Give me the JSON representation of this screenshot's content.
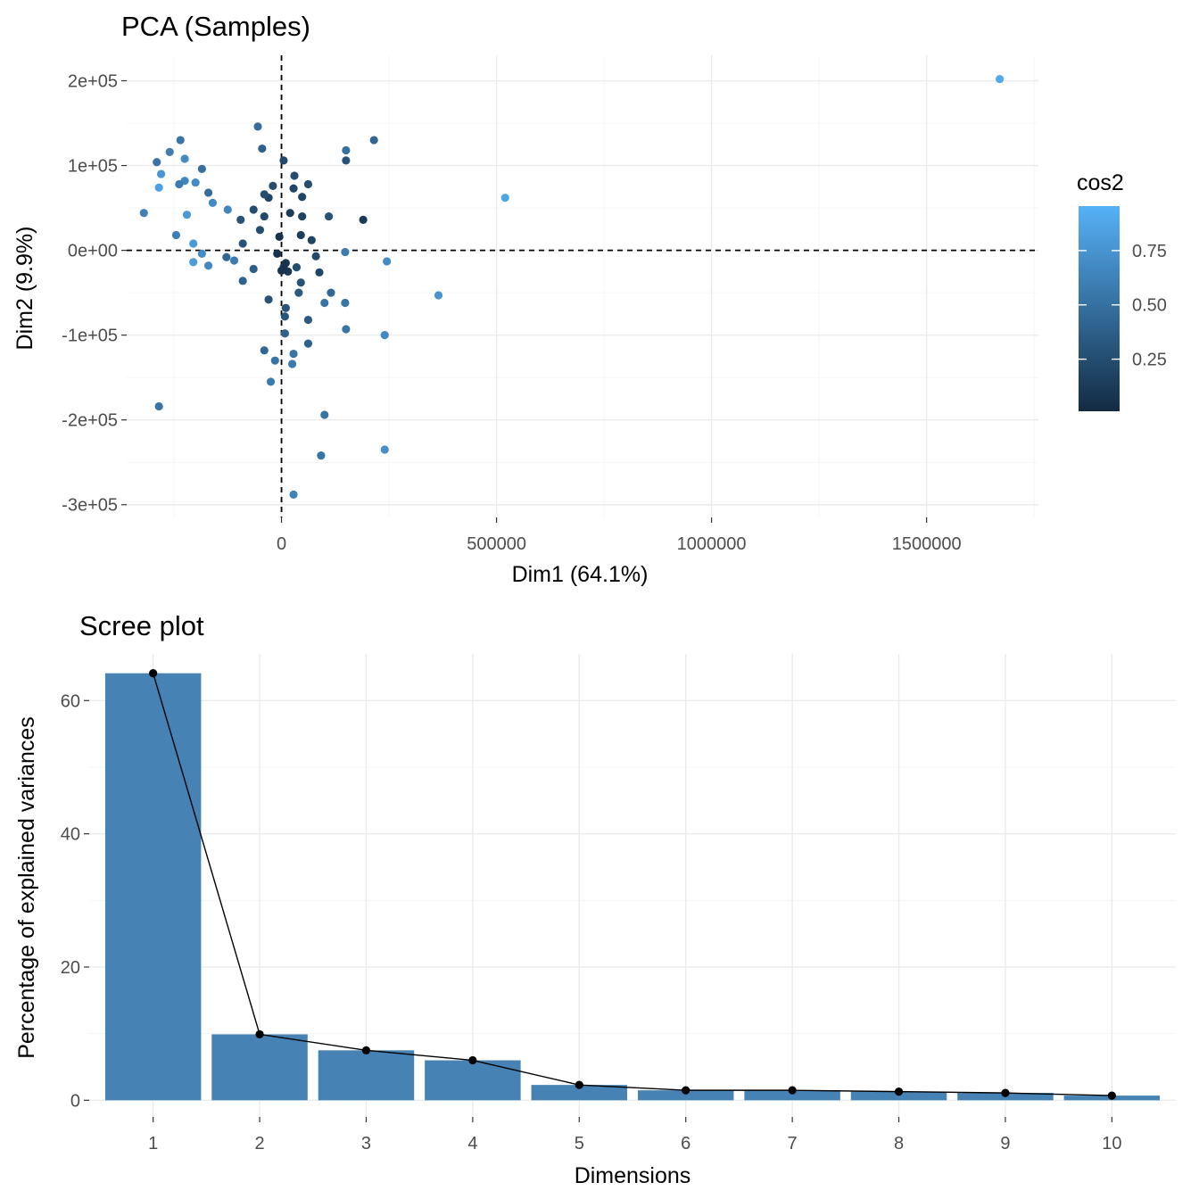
{
  "chart_data": [
    {
      "type": "scatter",
      "title": "PCA (Samples)",
      "xlabel": "Dim1 (64.1%)",
      "ylabel": "Dim2 (9.9%)",
      "xlim": [
        -360000,
        1760000
      ],
      "ylim": [
        -315000,
        230000
      ],
      "x_ticks": [
        0,
        500000,
        1000000,
        1500000
      ],
      "x_tick_labels": [
        "0",
        "500000",
        "1000000",
        "1500000"
      ],
      "y_ticks": [
        200000,
        100000,
        0,
        -100000,
        -200000,
        -300000
      ],
      "y_tick_labels": [
        "2e+05",
        "1e+05",
        "0e+00",
        "-1e+05",
        "-2e+05",
        "-3e+05"
      ],
      "reference_lines": {
        "x": 0,
        "y": 0,
        "style": "dashed"
      },
      "grid": true,
      "color_scale": {
        "name": "cos2",
        "low_color": "#132b43",
        "high_color": "#56b1f7",
        "range": [
          0,
          1
        ],
        "breaks": [
          0.75,
          0.5,
          0.25
        ],
        "break_labels": [
          "0.75",
          "0.50",
          "0.25"
        ],
        "legend_position": "right"
      },
      "points": [
        {
          "x": 1670000,
          "y": 202000,
          "cos2": 0.94
        },
        {
          "x": 520000,
          "y": 62000,
          "cos2": 0.9
        },
        {
          "x": 365000,
          "y": -53000,
          "cos2": 0.78
        },
        {
          "x": 245000,
          "y": -13000,
          "cos2": 0.72
        },
        {
          "x": 240000,
          "y": -100000,
          "cos2": 0.7
        },
        {
          "x": 240000,
          "y": -235000,
          "cos2": 0.74
        },
        {
          "x": 215000,
          "y": 130000,
          "cos2": 0.45
        },
        {
          "x": 190000,
          "y": 36000,
          "cos2": 0.12
        },
        {
          "x": 150000,
          "y": 118000,
          "cos2": 0.52
        },
        {
          "x": 150000,
          "y": 106000,
          "cos2": 0.3
        },
        {
          "x": 148000,
          "y": -2000,
          "cos2": 0.6
        },
        {
          "x": 148000,
          "y": -62000,
          "cos2": 0.55
        },
        {
          "x": 150000,
          "y": -93000,
          "cos2": 0.55
        },
        {
          "x": 110000,
          "y": 40000,
          "cos2": 0.3
        },
        {
          "x": 115000,
          "y": -50000,
          "cos2": 0.45
        },
        {
          "x": 100000,
          "y": -62000,
          "cos2": 0.55
        },
        {
          "x": 100000,
          "y": -194000,
          "cos2": 0.55
        },
        {
          "x": 92000,
          "y": -242000,
          "cos2": 0.55
        },
        {
          "x": 88000,
          "y": -26000,
          "cos2": 0.2
        },
        {
          "x": 80000,
          "y": -7000,
          "cos2": 0.22
        },
        {
          "x": 70000,
          "y": 12000,
          "cos2": 0.18
        },
        {
          "x": 62000,
          "y": 78000,
          "cos2": 0.25
        },
        {
          "x": 62000,
          "y": -82000,
          "cos2": 0.35
        },
        {
          "x": 62000,
          "y": -110000,
          "cos2": 0.4
        },
        {
          "x": 48000,
          "y": 63000,
          "cos2": 0.2
        },
        {
          "x": 48000,
          "y": 40000,
          "cos2": 0.18
        },
        {
          "x": 45000,
          "y": 18000,
          "cos2": 0.15
        },
        {
          "x": 45000,
          "y": -38000,
          "cos2": 0.3
        },
        {
          "x": 40000,
          "y": -50000,
          "cos2": 0.35
        },
        {
          "x": 35000,
          "y": -20000,
          "cos2": 0.25
        },
        {
          "x": 30000,
          "y": 88000,
          "cos2": 0.25
        },
        {
          "x": 28000,
          "y": 73000,
          "cos2": 0.2
        },
        {
          "x": 28000,
          "y": -122000,
          "cos2": 0.55
        },
        {
          "x": 25000,
          "y": -134000,
          "cos2": 0.6
        },
        {
          "x": 28000,
          "y": -288000,
          "cos2": 0.65
        },
        {
          "x": 20000,
          "y": 44000,
          "cos2": 0.12
        },
        {
          "x": 15000,
          "y": -25000,
          "cos2": 0.1
        },
        {
          "x": 10000,
          "y": -15000,
          "cos2": 0.08
        },
        {
          "x": 10000,
          "y": -68000,
          "cos2": 0.3
        },
        {
          "x": 8000,
          "y": -78000,
          "cos2": 0.32
        },
        {
          "x": 8000,
          "y": -98000,
          "cos2": 0.4
        },
        {
          "x": 5000,
          "y": 106000,
          "cos2": 0.22
        },
        {
          "x": 5000,
          "y": -20000,
          "cos2": 0.05
        },
        {
          "x": 0,
          "y": -24000,
          "cos2": 0.05
        },
        {
          "x": -5000,
          "y": 16000,
          "cos2": 0.05
        },
        {
          "x": -10000,
          "y": -4000,
          "cos2": 0.06
        },
        {
          "x": -15000,
          "y": -130000,
          "cos2": 0.55
        },
        {
          "x": -20000,
          "y": 76000,
          "cos2": 0.25
        },
        {
          "x": -25000,
          "y": -155000,
          "cos2": 0.6
        },
        {
          "x": -30000,
          "y": 62000,
          "cos2": 0.18
        },
        {
          "x": -30000,
          "y": -58000,
          "cos2": 0.3
        },
        {
          "x": -40000,
          "y": -118000,
          "cos2": 0.45
        },
        {
          "x": -40000,
          "y": 66000,
          "cos2": 0.25
        },
        {
          "x": -40000,
          "y": 40000,
          "cos2": 0.22
        },
        {
          "x": -45000,
          "y": 120000,
          "cos2": 0.4
        },
        {
          "x": -50000,
          "y": 24000,
          "cos2": 0.25
        },
        {
          "x": -55000,
          "y": 146000,
          "cos2": 0.5
        },
        {
          "x": -65000,
          "y": 48000,
          "cos2": 0.25
        },
        {
          "x": -65000,
          "y": -22000,
          "cos2": 0.38
        },
        {
          "x": -90000,
          "y": 8000,
          "cos2": 0.3
        },
        {
          "x": -90000,
          "y": -36000,
          "cos2": 0.4
        },
        {
          "x": -95000,
          "y": 36000,
          "cos2": 0.3
        },
        {
          "x": -110000,
          "y": -12000,
          "cos2": 0.6
        },
        {
          "x": -125000,
          "y": 48000,
          "cos2": 0.68
        },
        {
          "x": -128000,
          "y": -8000,
          "cos2": 0.45
        },
        {
          "x": -160000,
          "y": 56000,
          "cos2": 0.72
        },
        {
          "x": -170000,
          "y": 68000,
          "cos2": 0.5
        },
        {
          "x": -170000,
          "y": -18000,
          "cos2": 0.7
        },
        {
          "x": -185000,
          "y": 96000,
          "cos2": 0.5
        },
        {
          "x": -185000,
          "y": -4000,
          "cos2": 0.72
        },
        {
          "x": -200000,
          "y": 80000,
          "cos2": 0.72
        },
        {
          "x": -205000,
          "y": 8000,
          "cos2": 0.82
        },
        {
          "x": -205000,
          "y": -14000,
          "cos2": 0.85
        },
        {
          "x": -220000,
          "y": 42000,
          "cos2": 0.82
        },
        {
          "x": -225000,
          "y": 108000,
          "cos2": 0.72
        },
        {
          "x": -225000,
          "y": 82000,
          "cos2": 0.68
        },
        {
          "x": -235000,
          "y": 130000,
          "cos2": 0.55
        },
        {
          "x": -238000,
          "y": 78000,
          "cos2": 0.6
        },
        {
          "x": -245000,
          "y": 18000,
          "cos2": 0.62
        },
        {
          "x": -260000,
          "y": 116000,
          "cos2": 0.62
        },
        {
          "x": -280000,
          "y": 90000,
          "cos2": 0.8
        },
        {
          "x": -285000,
          "y": 74000,
          "cos2": 0.88
        },
        {
          "x": -290000,
          "y": 104000,
          "cos2": 0.55
        },
        {
          "x": -285000,
          "y": -184000,
          "cos2": 0.55
        },
        {
          "x": -320000,
          "y": 44000,
          "cos2": 0.65
        }
      ]
    },
    {
      "type": "bar",
      "title": "Scree plot",
      "xlabel": "Dimensions",
      "ylabel": "Percentage of explained variances",
      "categories": [
        "1",
        "2",
        "3",
        "4",
        "5",
        "6",
        "7",
        "8",
        "9",
        "10"
      ],
      "values": [
        64.1,
        9.9,
        7.5,
        6.0,
        2.3,
        1.5,
        1.5,
        1.3,
        1.1,
        0.7
      ],
      "ylim": [
        -2.5,
        67
      ],
      "y_ticks": [
        0,
        20,
        40,
        60
      ],
      "y_tick_labels": [
        "0",
        "20",
        "40",
        "60"
      ],
      "bar_color": "#4682b4",
      "line_overlay": true,
      "grid": true
    }
  ]
}
